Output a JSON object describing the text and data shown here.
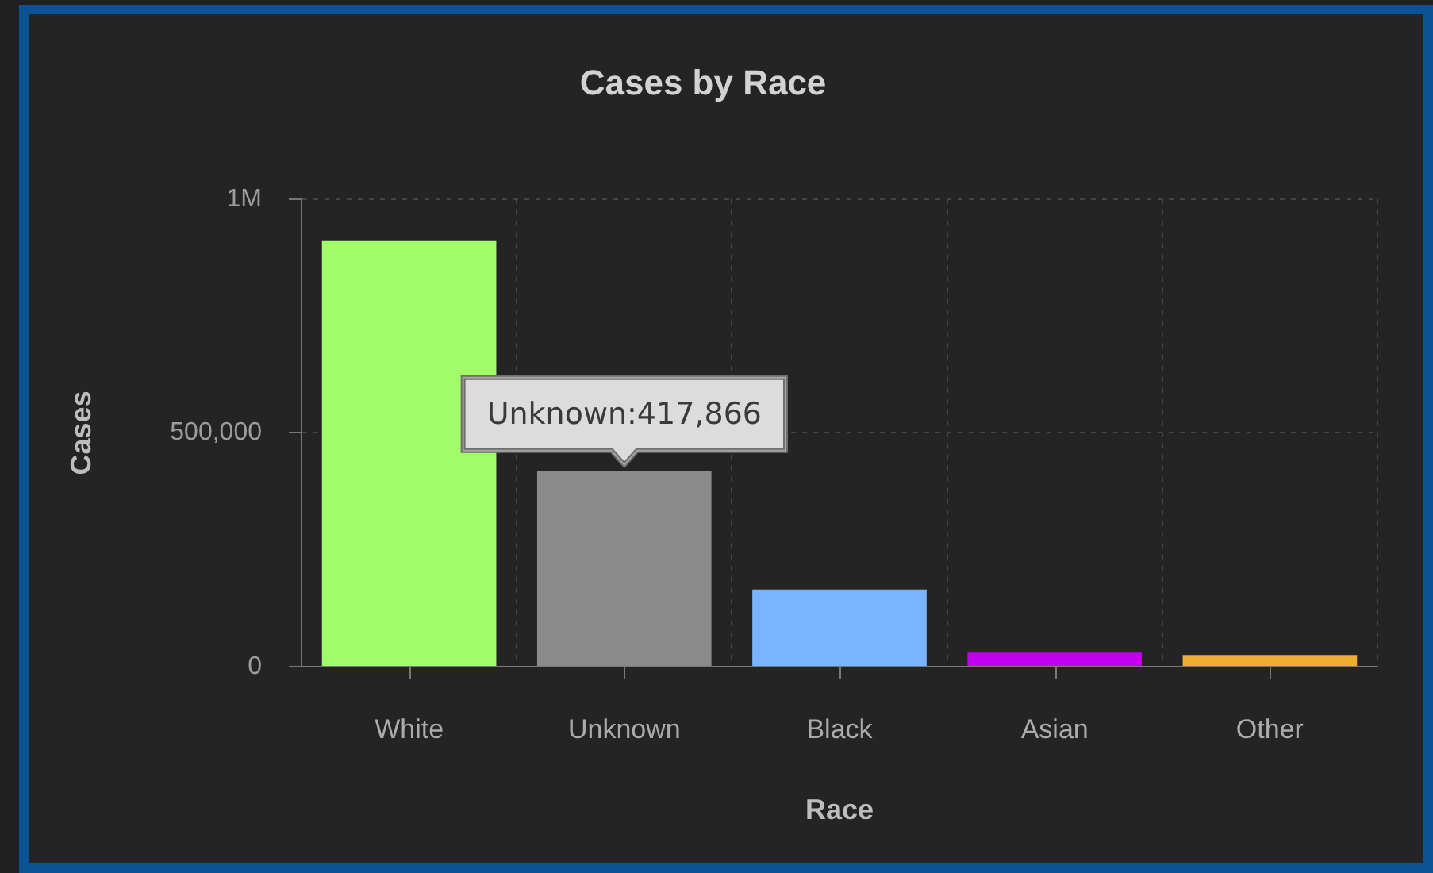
{
  "chart_data": {
    "type": "bar",
    "title": "Cases by Race",
    "xlabel": "Race",
    "ylabel": "Cases",
    "categories": [
      "White",
      "Unknown",
      "Black",
      "Asian",
      "Other"
    ],
    "values": [
      910000,
      417866,
      165000,
      30000,
      25000
    ],
    "colors": [
      "#a2fc6a",
      "#8a8a8a",
      "#7ab4ff",
      "#c000f0",
      "#efae30"
    ],
    "ylim": [
      0,
      1000000
    ],
    "yticks": [
      0,
      {
        "value": 500000,
        "label": "500,000"
      },
      {
        "value": 1000000,
        "label": "1M"
      }
    ],
    "grid": true,
    "legend": false,
    "annotations": [
      {
        "text": "Unknown:417,866",
        "x": "Unknown",
        "y": 417866
      }
    ]
  }
}
